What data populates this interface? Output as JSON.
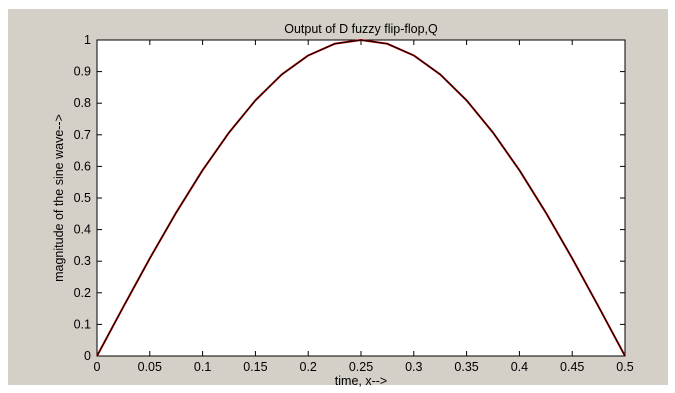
{
  "chart_data": {
    "type": "line",
    "title": "Output of D fuzzy flip-flop,Q",
    "xlabel": "time, x-->",
    "ylabel": "magnitude of the sine wave-->",
    "xlim": [
      0,
      0.5
    ],
    "ylim": [
      0,
      1
    ],
    "grid": false,
    "x_ticks": [
      0,
      0.05,
      0.1,
      0.15,
      0.2,
      0.25,
      0.3,
      0.35,
      0.4,
      0.45,
      0.5
    ],
    "x_tick_labels": [
      "0",
      "0.05",
      "0.1",
      "0.15",
      "0.2",
      "0.25",
      "0.3",
      "0.35",
      "0.4",
      "0.45",
      "0.5"
    ],
    "y_ticks": [
      0,
      0.1,
      0.2,
      0.3,
      0.4,
      0.5,
      0.6,
      0.7,
      0.8,
      0.9,
      1
    ],
    "y_tick_labels": [
      "0",
      "0.1",
      "0.2",
      "0.3",
      "0.4",
      "0.5",
      "0.6",
      "0.7",
      "0.8",
      "0.9",
      "1"
    ],
    "series": [
      {
        "color": "#c00000",
        "x": [
          0,
          0.025,
          0.05,
          0.075,
          0.1,
          0.125,
          0.15,
          0.175,
          0.2,
          0.225,
          0.25,
          0.275,
          0.3,
          0.325,
          0.35,
          0.375,
          0.4,
          0.425,
          0.45,
          0.475,
          0.5
        ],
        "y": [
          0,
          0.156,
          0.309,
          0.454,
          0.588,
          0.707,
          0.809,
          0.891,
          0.951,
          0.988,
          1,
          0.988,
          0.951,
          0.891,
          0.809,
          0.707,
          0.588,
          0.454,
          0.309,
          0.156,
          0
        ]
      },
      {
        "color": "#000000",
        "x": [
          0,
          0.025,
          0.05,
          0.075,
          0.1,
          0.125,
          0.15,
          0.175,
          0.2,
          0.225,
          0.25,
          0.275,
          0.3,
          0.325,
          0.35,
          0.375,
          0.4,
          0.425,
          0.45,
          0.475,
          0.5
        ],
        "y": [
          0,
          0.156,
          0.309,
          0.454,
          0.588,
          0.707,
          0.809,
          0.891,
          0.951,
          0.988,
          1,
          0.988,
          0.951,
          0.891,
          0.809,
          0.707,
          0.588,
          0.454,
          0.309,
          0.156,
          0
        ]
      }
    ]
  }
}
